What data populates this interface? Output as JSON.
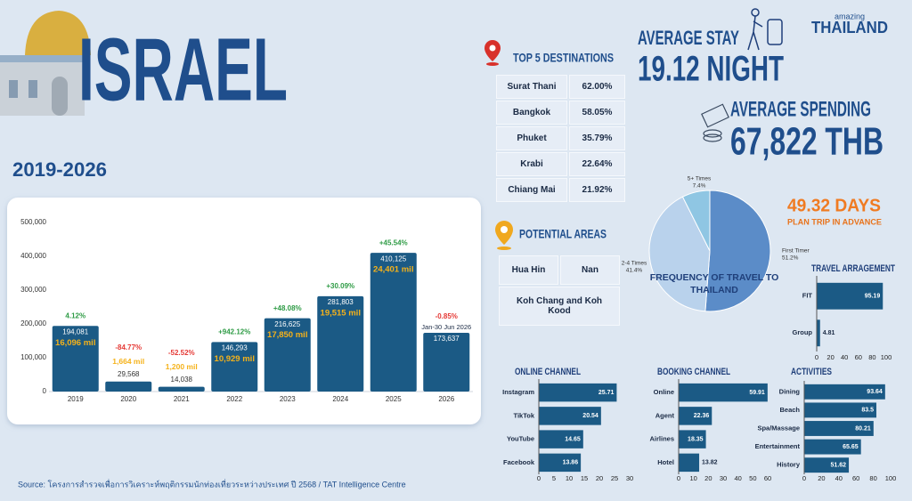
{
  "header": {
    "title": "ISRAEL",
    "period": "2019-2026",
    "logo_small": "amazing",
    "logo_brand": "THAILAND"
  },
  "average_stay": {
    "label": "AVERAGE STAY",
    "value": "19.12 NIGHT"
  },
  "average_spending": {
    "label": "AVERAGE SPENDING",
    "value": "67,822 THB"
  },
  "plan_ahead": {
    "value": "49.32 DAYS",
    "label": "PLAN TRIP IN ADVANCE"
  },
  "top_destinations": {
    "title": "TOP 5 DESTINATIONS",
    "rows": [
      [
        "Surat Thani",
        "62.00%"
      ],
      [
        "Bangkok",
        "58.05%"
      ],
      [
        "Phuket",
        "35.79%"
      ],
      [
        "Krabi",
        "22.64%"
      ],
      [
        "Chiang Mai",
        "21.92%"
      ]
    ]
  },
  "potential_areas": {
    "title": "POTENTIAL AREAS",
    "rows": [
      [
        "Hua Hin",
        "Nan"
      ],
      [
        "Koh Chang and Koh Kood"
      ]
    ]
  },
  "source": "Source: โครงการสำรวจเพื่อการวิเคราะห์พฤติกรรมนักท่องเที่ยวระหว่างประเทศ ปี 2568 / TAT Intelligence Centre",
  "chart_data": [
    {
      "type": "bar",
      "categories": [
        "2019",
        "2020",
        "2021",
        "2022",
        "2023",
        "2024",
        "2025",
        "2026"
      ],
      "values": [
        194081,
        29568,
        14038,
        146293,
        216625,
        281803,
        410125,
        173637
      ],
      "value_labels": [
        "194,081",
        "29,568",
        "14,038",
        "146,293",
        "216,625",
        "281,803",
        "410,125",
        "173,637"
      ],
      "growth_labels": [
        "4.12%",
        "-84.77%",
        "-52.52%",
        "+942.12%",
        "+48.08%",
        "+30.09%",
        "+45.54%",
        "-0.85%"
      ],
      "revenue_labels": [
        "16,096 mil",
        "1,664 mil",
        "1,200 mil",
        "10,929 mil",
        "17,850 mil",
        "19,515 mil",
        "24,401 mil",
        null
      ],
      "period_labels": [
        null,
        null,
        null,
        null,
        null,
        null,
        null,
        "Jan-30 Jun 2026"
      ],
      "color": "#1b5a85",
      "ylim": [
        0,
        500000
      ],
      "yticks": [
        0,
        {
          "value": 100000,
          "label": "100,000"
        },
        {
          "value": 200000,
          "label": "200,000"
        },
        {
          "value": 300000,
          "label": "300,000"
        },
        {
          "value": 400000,
          "label": "400,000"
        },
        {
          "value": 500000,
          "label": "500,000"
        }
      ]
    },
    {
      "type": "pie",
      "title": "FREQUENCY OF TRAVEL TO THAILAND",
      "categories": [
        "First Timer",
        "2-4 Times",
        "5+ Times"
      ],
      "values": [
        51.2,
        41.4,
        7.4
      ],
      "value_labels": [
        "51.2%",
        "41.4%",
        "7.4%"
      ],
      "colors": [
        "#5b8cc8",
        "#b9d2ec",
        "#8fc6e3"
      ]
    },
    {
      "type": "hbar",
      "title": "TRAVEL ARRAGEMENT",
      "categories": [
        "FIT",
        "Group"
      ],
      "values": [
        95.19,
        4.81
      ],
      "color": "#1b5a85",
      "xlim": [
        0,
        100
      ],
      "xticks": [
        0,
        20,
        40,
        60,
        80,
        100
      ]
    },
    {
      "type": "hbar",
      "title": "ONLINE CHANNEL",
      "categories": [
        "Instagram",
        "TikTok",
        "YouTube",
        "Facebook"
      ],
      "values": [
        25.71,
        20.54,
        14.65,
        13.86
      ],
      "color": "#1b5a85",
      "xlim": [
        0,
        30
      ],
      "xticks": [
        0,
        5,
        10,
        15,
        20,
        25,
        30
      ]
    },
    {
      "type": "hbar",
      "title": "BOOKING CHANNEL",
      "categories": [
        "Online",
        "Agent",
        "Airlines",
        "Hotel"
      ],
      "values": [
        59.91,
        22.36,
        18.35,
        13.82
      ],
      "color": "#1b5a85",
      "xlim": [
        0,
        60
      ],
      "xticks": [
        0,
        10,
        20,
        30,
        40,
        50,
        60
      ]
    },
    {
      "type": "hbar",
      "title": "ACTIVITIES",
      "categories": [
        "Dining",
        "Beach",
        "Spa/Massage",
        "Entertainment",
        "History"
      ],
      "values": [
        93.64,
        83.5,
        80.21,
        65.65,
        51.62
      ],
      "color": "#1b5a85",
      "xlim": [
        0,
        100
      ],
      "xticks": [
        0,
        20,
        40,
        60,
        80,
        100
      ]
    }
  ]
}
